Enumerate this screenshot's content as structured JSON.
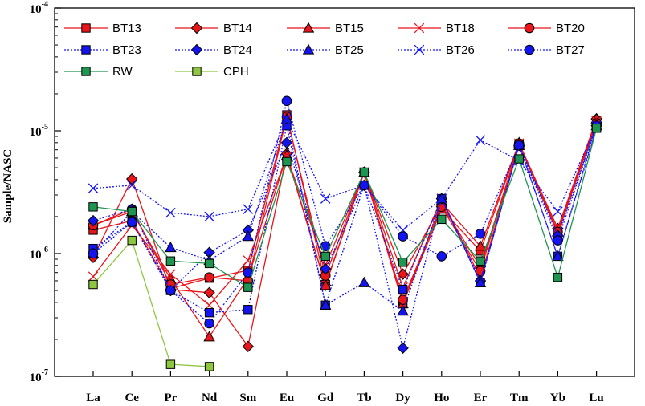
{
  "chart_data": {
    "type": "line",
    "title": "",
    "xlabel": "",
    "ylabel": "Sample/NASC",
    "yscale": "log",
    "ylim": [
      1e-07,
      0.0001
    ],
    "categories": [
      "La",
      "Ce",
      "Pr",
      "Nd",
      "Sm",
      "Eu",
      "Gd",
      "Tb",
      "Dy",
      "Ho",
      "Er",
      "Tm",
      "Yb",
      "Lu"
    ],
    "y_ticks": [
      {
        "value": 1e-07,
        "base": "10",
        "exp": "-7"
      },
      {
        "value": 1e-06,
        "base": "10",
        "exp": "-6"
      },
      {
        "value": 1e-05,
        "base": "10",
        "exp": "-5"
      },
      {
        "value": 0.0001,
        "base": "10",
        "exp": "-4"
      }
    ],
    "legend_position": "top",
    "series": [
      {
        "name": "BT13",
        "color": "#e8151b",
        "dash": "solid",
        "marker": "square",
        "filled": true,
        "values": [
          1.55e-06,
          1.85e-06,
          5.2e-07,
          6.3e-07,
          7.3e-07,
          1.35e-05,
          5.6e-07,
          4.6e-06,
          3.9e-07,
          2.3e-06,
          1.05e-06,
          7.8e-06,
          1.45e-06,
          1.2e-05
        ]
      },
      {
        "name": "BT14",
        "color": "#e8151b",
        "dash": "solid",
        "marker": "diamond",
        "filled": true,
        "values": [
          9.3e-07,
          4.05e-06,
          5.1e-07,
          4.8e-07,
          1.75e-07,
          6.5e-06,
          5.5e-07,
          4.6e-06,
          6.8e-07,
          2.5e-06,
          7.8e-07,
          7.8e-06,
          1.6e-06,
          1.25e-05
        ]
      },
      {
        "name": "BT15",
        "color": "#e8151b",
        "dash": "solid",
        "marker": "triangle",
        "filled": true,
        "values": [
          1.7e-06,
          2.2e-06,
          6.2e-07,
          2.1e-07,
          6.3e-07,
          6.3e-06,
          5.5e-07,
          4.6e-06,
          3.9e-07,
          2.6e-06,
          1.15e-06,
          8e-06,
          1.5e-06,
          1.25e-05
        ]
      },
      {
        "name": "BT18",
        "color": "#e8151b",
        "dash": "solid",
        "marker": "x",
        "filled": false,
        "values": [
          6.5e-07,
          1.7e-06,
          6.8e-07,
          3.8e-07,
          8.8e-07,
          6.2e-06,
          8e-07,
          4.6e-06,
          5.3e-07,
          2.8e-06,
          6.3e-07,
          7.9e-06,
          1.6e-06,
          1.2e-05
        ]
      },
      {
        "name": "BT20",
        "color": "#e8151b",
        "dash": "solid",
        "marker": "circle",
        "filled": true,
        "values": [
          1.7e-06,
          2.3e-06,
          5.6e-07,
          6.4e-07,
          6e-07,
          1.3e-05,
          6.6e-07,
          4.6e-06,
          4.2e-07,
          2.4e-06,
          7.2e-07,
          7.9e-06,
          1.5e-06,
          1.15e-05
        ]
      },
      {
        "name": "BT23",
        "color": "#1414f0",
        "dash": "dotted",
        "marker": "square",
        "filled": true,
        "values": [
          1.1e-06,
          1.8e-06,
          5e-07,
          3.3e-07,
          3.5e-07,
          1.1e-05,
          3.8e-07,
          3.6e-06,
          5.1e-07,
          2.8e-06,
          5.8e-07,
          7.6e-06,
          9.5e-07,
          1.05e-05
        ]
      },
      {
        "name": "BT24",
        "color": "#1414f0",
        "dash": "dotted",
        "marker": "diamond",
        "filled": true,
        "values": [
          1.85e-06,
          2.3e-06,
          5e-07,
          1.02e-06,
          1.55e-06,
          8e-06,
          7.5e-07,
          3.6e-06,
          1.7e-07,
          2.8e-06,
          6e-07,
          7.6e-06,
          1.4e-06,
          1.1e-05
        ]
      },
      {
        "name": "BT25",
        "color": "#1414f0",
        "dash": "dotted",
        "marker": "triangle",
        "filled": true,
        "values": [
          1e-06,
          2.2e-06,
          1.12e-06,
          8.8e-07,
          1.38e-06,
          1.25e-05,
          3.8e-07,
          5.8e-07,
          3.4e-07,
          2.8e-06,
          5.8e-07,
          7.6e-06,
          9.5e-07,
          1.1e-05
        ]
      },
      {
        "name": "BT26",
        "color": "#1414f0",
        "dash": "dotted",
        "marker": "x",
        "filled": false,
        "values": [
          3.4e-06,
          3.6e-06,
          2.15e-06,
          2e-06,
          2.3e-06,
          1.25e-05,
          2.8e-06,
          3.6e-06,
          1.55e-06,
          2.8e-06,
          8.4e-06,
          5.7e-06,
          2.2e-06,
          1.1e-05
        ]
      },
      {
        "name": "BT27",
        "color": "#1414f0",
        "dash": "dotted",
        "marker": "circle",
        "filled": true,
        "values": [
          1e-06,
          1.8e-06,
          5e-07,
          2.7e-07,
          7e-07,
          1.75e-05,
          1.15e-06,
          3.6e-06,
          1.38e-06,
          9.5e-07,
          1.45e-06,
          7.6e-06,
          1.28e-06,
          1.1e-05
        ]
      },
      {
        "name": "RW",
        "color": "#1e9550",
        "dash": "solid",
        "marker": "square",
        "filled": true,
        "values": [
          2.4e-06,
          2.2e-06,
          8.7e-07,
          8.3e-07,
          5.3e-07,
          5.6e-06,
          9.5e-07,
          4.6e-06,
          8.5e-07,
          1.9e-06,
          8.7e-07,
          5.9e-06,
          6.4e-07,
          1.05e-05
        ]
      },
      {
        "name": "CPH",
        "color": "#8fc640",
        "dash": "solid",
        "marker": "square",
        "filled": true,
        "values": [
          5.6e-07,
          1.28e-06,
          1.25e-07,
          1.2e-07,
          null,
          null,
          null,
          null,
          null,
          null,
          null,
          null,
          null,
          null
        ]
      }
    ]
  }
}
